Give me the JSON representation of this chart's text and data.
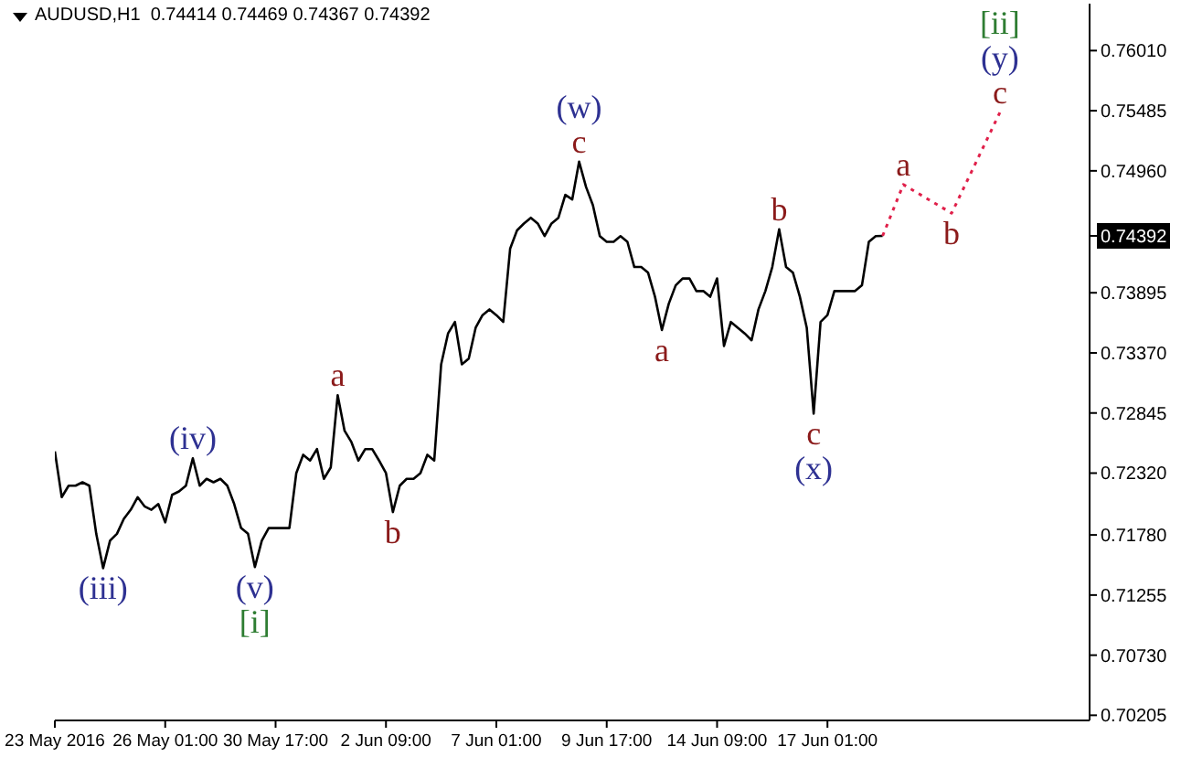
{
  "chart_data": {
    "type": "line",
    "title": "AUDUSD,H1  0.74414 0.74469 0.74367 0.74392",
    "categories": [
      "23 May 2016",
      null,
      null,
      null,
      null,
      null,
      null,
      null,
      null,
      null,
      null,
      null,
      null,
      null,
      null,
      null,
      "26 May 01:00",
      null,
      null,
      null,
      null,
      null,
      null,
      null,
      null,
      null,
      null,
      null,
      null,
      null,
      null,
      null,
      "30 May 17:00",
      null,
      null,
      null,
      null,
      null,
      null,
      null,
      null,
      null,
      null,
      null,
      null,
      null,
      null,
      null,
      "2 Jun 09:00",
      null,
      null,
      null,
      null,
      null,
      null,
      null,
      null,
      null,
      null,
      null,
      null,
      null,
      null,
      null,
      "7 Jun 01:00",
      null,
      null,
      null,
      null,
      null,
      null,
      null,
      null,
      null,
      null,
      null,
      null,
      null,
      null,
      null,
      "9 Jun 17:00",
      null,
      null,
      null,
      null,
      null,
      null,
      null,
      null,
      null,
      null,
      null,
      null,
      null,
      null,
      null,
      "14 Jun 09:00",
      null,
      null,
      null,
      null,
      null,
      null,
      null,
      null,
      null,
      null,
      null,
      null,
      null,
      null,
      null,
      "17 Jun 01:00",
      null,
      null,
      null,
      null,
      null,
      null,
      null,
      null,
      null,
      null,
      null,
      null,
      null,
      null,
      null,
      null,
      null,
      null,
      null,
      null,
      null,
      null,
      null,
      null,
      null,
      null,
      null,
      null,
      null,
      null,
      null,
      null,
      null,
      null,
      null,
      null,
      null,
      null
    ],
    "series": [
      {
        "type": "line",
        "color": "#000000",
        "line_style": "solid",
        "values": [
          0.7251,
          0.7211,
          0.7221,
          0.7221,
          0.7224,
          0.7221,
          0.7179,
          0.7149,
          0.7173,
          0.7179,
          0.7192,
          0.72,
          0.7211,
          0.7203,
          0.72,
          0.7205,
          0.7189,
          0.7213,
          0.7216,
          0.7221,
          0.7245,
          0.7221,
          0.7227,
          0.7224,
          0.7227,
          0.7221,
          0.7205,
          0.7184,
          0.7179,
          0.715,
          0.7173,
          0.7184,
          0.7184,
          0.7184,
          0.7184,
          0.7232,
          0.7248,
          0.7243,
          0.7253,
          0.7227,
          0.7237,
          0.73,
          0.7269,
          0.7259,
          0.7243,
          0.7253,
          0.7253,
          0.7243,
          0.7232,
          0.7198,
          0.7221,
          0.7227,
          0.7227,
          0.7232,
          0.7248,
          0.7243,
          0.7327,
          0.7354,
          0.7364,
          0.7327,
          0.7332,
          0.7359,
          0.737,
          0.7375,
          0.737,
          0.7364,
          0.7428,
          0.7444,
          0.745,
          0.7455,
          0.745,
          0.7439,
          0.745,
          0.7455,
          0.7475,
          0.7471,
          0.7504,
          0.7482,
          0.7466,
          0.7439,
          0.7434,
          0.7434,
          0.7439,
          0.7434,
          0.7412,
          0.7412,
          0.7407,
          0.7386,
          0.7357,
          0.738,
          0.7396,
          0.7402,
          0.7402,
          0.7391,
          0.7391,
          0.7386,
          0.7402,
          0.7343,
          0.7364,
          0.7359,
          0.7354,
          0.7348,
          0.7375,
          0.7391,
          0.7412,
          0.7445,
          0.7412,
          0.7407,
          0.7386,
          0.7359,
          0.7284,
          0.7364,
          0.737,
          0.7391,
          0.7391,
          0.7391,
          0.7391,
          0.7396,
          0.7434,
          0.7439,
          0.74392,
          null,
          null,
          null,
          null,
          null,
          null,
          null,
          null,
          null,
          null,
          null,
          null,
          null,
          null,
          null,
          null,
          null,
          null,
          null,
          null,
          null,
          null,
          null,
          null,
          null,
          null,
          null,
          null,
          null,
          null
        ]
      },
      {
        "type": "line",
        "color": "#e0204a",
        "line_style": "dotted",
        "values": [
          null,
          null,
          null,
          null,
          null,
          null,
          null,
          null,
          null,
          null,
          null,
          null,
          null,
          null,
          null,
          null,
          null,
          null,
          null,
          null,
          null,
          null,
          null,
          null,
          null,
          null,
          null,
          null,
          null,
          null,
          null,
          null,
          null,
          null,
          null,
          null,
          null,
          null,
          null,
          null,
          null,
          null,
          null,
          null,
          null,
          null,
          null,
          null,
          null,
          null,
          null,
          null,
          null,
          null,
          null,
          null,
          null,
          null,
          null,
          null,
          null,
          null,
          null,
          null,
          null,
          null,
          null,
          null,
          null,
          null,
          null,
          null,
          null,
          null,
          null,
          null,
          null,
          null,
          null,
          null,
          null,
          null,
          null,
          null,
          null,
          null,
          null,
          null,
          null,
          null,
          null,
          null,
          null,
          null,
          null,
          null,
          null,
          null,
          null,
          null,
          null,
          null,
          null,
          null,
          null,
          null,
          null,
          null,
          null,
          null,
          null,
          null,
          null,
          null,
          null,
          null,
          null,
          null,
          null,
          null,
          0.74392,
          null,
          null,
          0.7484,
          null,
          null,
          null,
          null,
          null,
          null,
          0.7459,
          null,
          null,
          null,
          null,
          null,
          null,
          0.7547,
          null,
          null,
          null,
          null,
          null,
          null,
          null,
          null,
          null,
          null,
          null,
          null,
          null
        ]
      }
    ],
    "ylim": [
      0.7016,
      0.7642
    ],
    "yticks": [
      {
        "value": 0.7601,
        "label": "0.76010"
      },
      0.75485,
      {
        "value": 0.7496,
        "label": "0.74960"
      },
      0.74392,
      0.73895,
      {
        "value": 0.7337,
        "label": "0.73370"
      },
      0.72845,
      {
        "value": 0.7232,
        "label": "0.72320"
      },
      {
        "value": 0.7178,
        "label": "0.71780"
      },
      0.71255,
      {
        "value": 0.7073,
        "label": "0.70730"
      },
      0.70205
    ],
    "grid": false,
    "marker": "none",
    "annotations": [
      {
        "text": "(iii)",
        "y": 0.7149
      },
      {
        "text": "(iv)",
        "y": 0.7245
      },
      {
        "text": "(v)",
        "y": 0.715
      },
      {
        "text": "[i]",
        "y": 0.715
      },
      {
        "text": "a",
        "y": 0.73
      },
      {
        "text": "b",
        "y": 0.7198
      },
      {
        "text": "c",
        "y": 0.7504
      },
      {
        "text": "(w)",
        "y": 0.7504
      },
      {
        "text": "a",
        "y": 0.7357
      },
      {
        "text": "b",
        "y": 0.7445
      },
      {
        "text": "c",
        "y": 0.7284
      },
      {
        "text": "(x)",
        "y": 0.7284
      },
      {
        "text": "a",
        "y": 0.7484
      },
      {
        "text": "b",
        "y": 0.7459
      },
      {
        "text": "c",
        "y": 0.7547
      },
      {
        "text": "(y)",
        "y": 0.7547
      },
      {
        "text": "[ii]",
        "y": 0.7547
      }
    ]
  }
}
